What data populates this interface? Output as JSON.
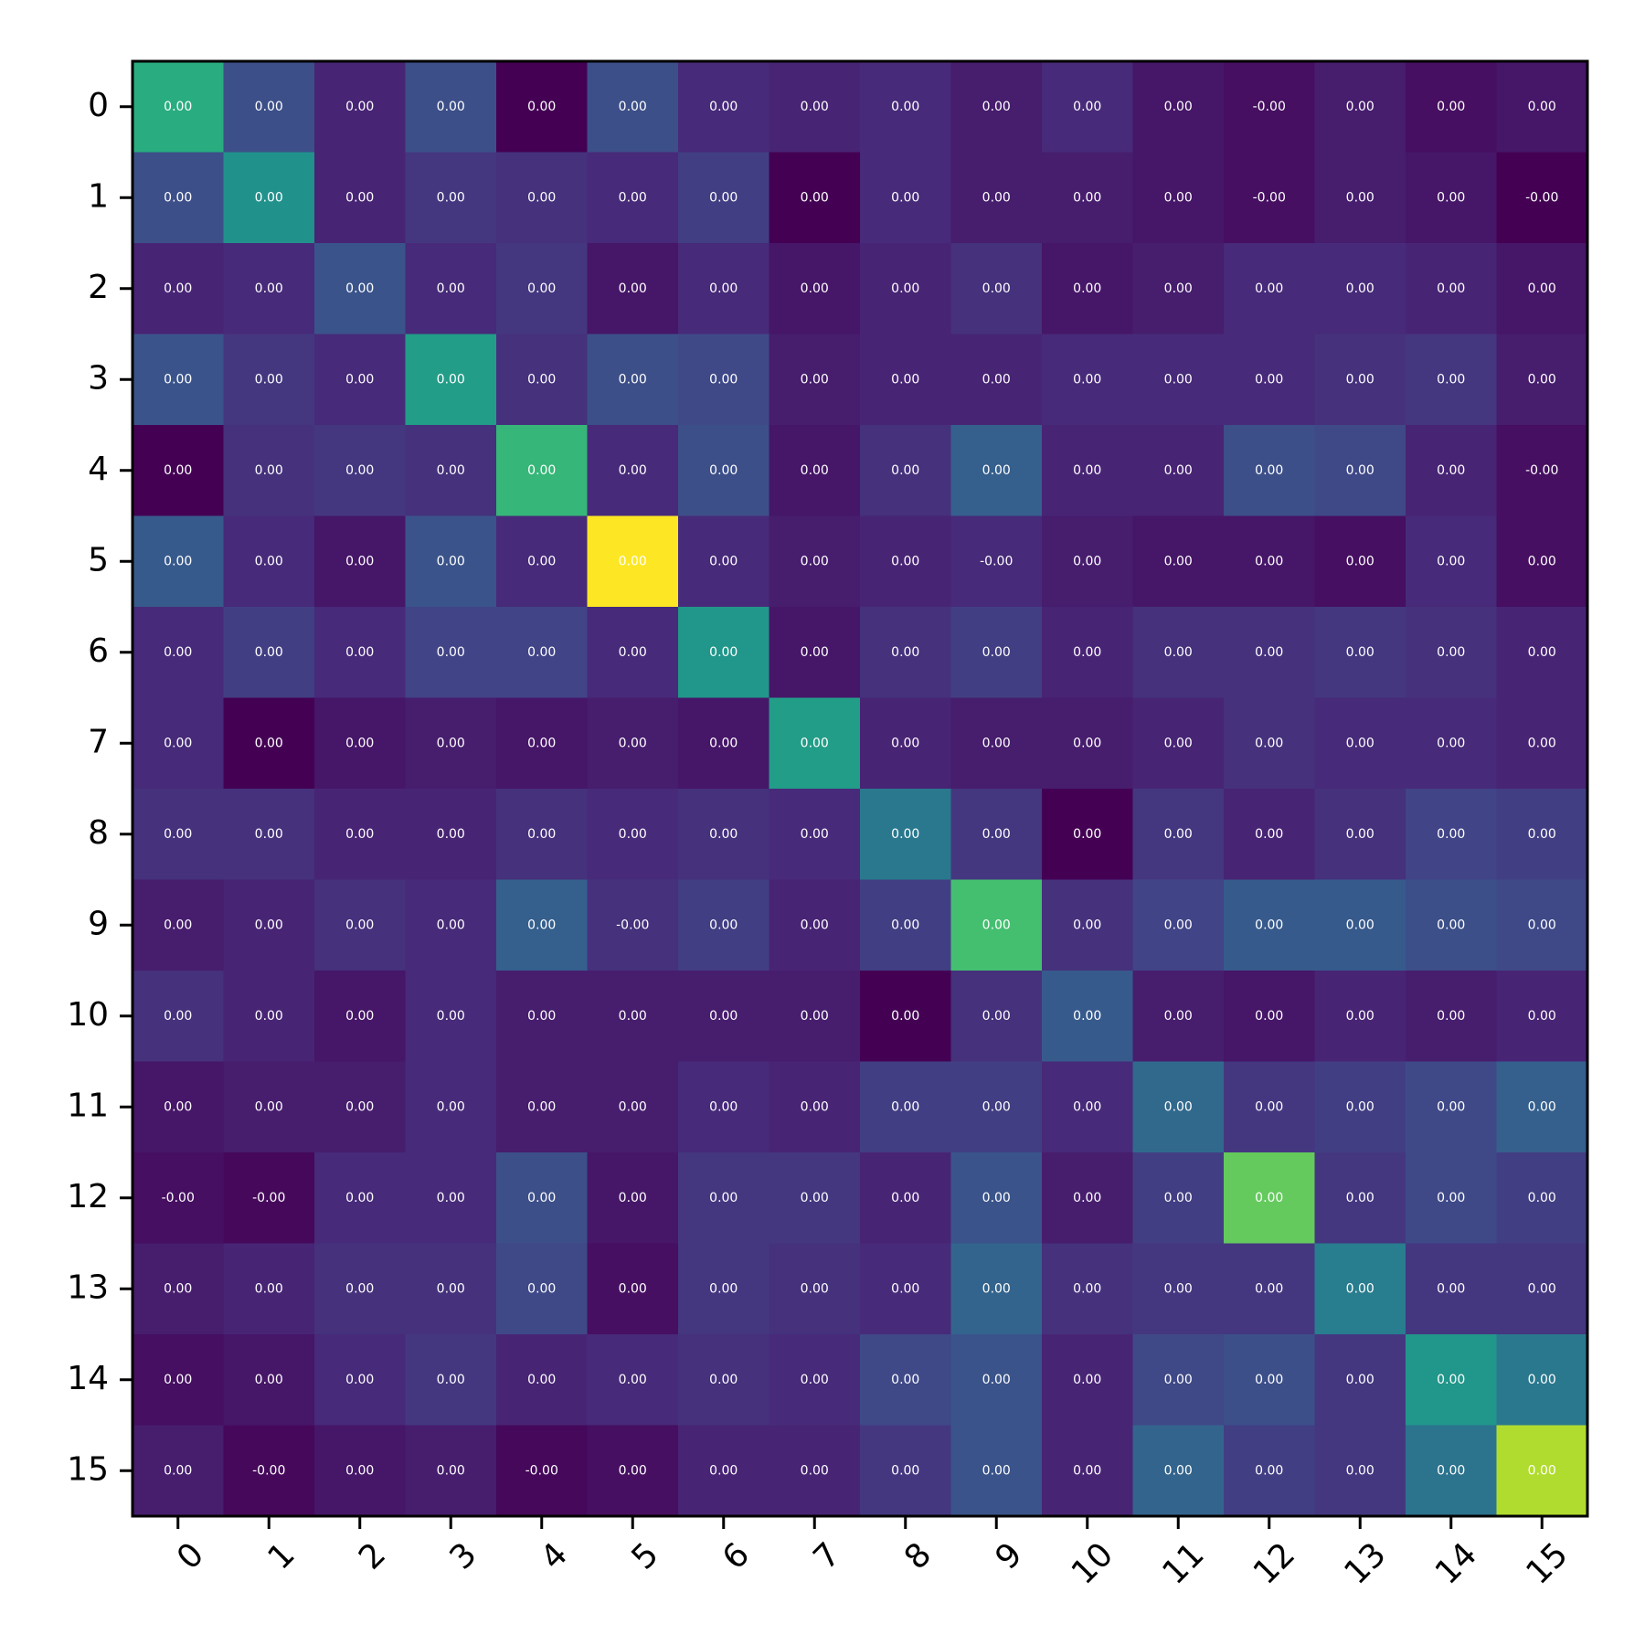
{
  "chart_data": {
    "type": "heatmap",
    "colormap": "viridis",
    "x_tick_rotation_deg": 45,
    "x_categories": [
      "0",
      "1",
      "2",
      "3",
      "4",
      "5",
      "6",
      "7",
      "8",
      "9",
      "10",
      "11",
      "12",
      "13",
      "14",
      "15"
    ],
    "y_categories": [
      "0",
      "1",
      "2",
      "3",
      "4",
      "5",
      "6",
      "7",
      "8",
      "9",
      "10",
      "11",
      "12",
      "13",
      "14",
      "15"
    ],
    "cell_labels": [
      [
        "0.00",
        "0.00",
        "0.00",
        "0.00",
        "0.00",
        "0.00",
        "0.00",
        "0.00",
        "0.00",
        "0.00",
        "0.00",
        "0.00",
        "-0.00",
        "0.00",
        "0.00",
        "0.00"
      ],
      [
        "0.00",
        "0.00",
        "0.00",
        "0.00",
        "0.00",
        "0.00",
        "0.00",
        "0.00",
        "0.00",
        "0.00",
        "0.00",
        "0.00",
        "-0.00",
        "0.00",
        "0.00",
        "-0.00"
      ],
      [
        "0.00",
        "0.00",
        "0.00",
        "0.00",
        "0.00",
        "0.00",
        "0.00",
        "0.00",
        "0.00",
        "0.00",
        "0.00",
        "0.00",
        "0.00",
        "0.00",
        "0.00",
        "0.00"
      ],
      [
        "0.00",
        "0.00",
        "0.00",
        "0.00",
        "0.00",
        "0.00",
        "0.00",
        "0.00",
        "0.00",
        "0.00",
        "0.00",
        "0.00",
        "0.00",
        "0.00",
        "0.00",
        "0.00"
      ],
      [
        "0.00",
        "0.00",
        "0.00",
        "0.00",
        "0.00",
        "0.00",
        "0.00",
        "0.00",
        "0.00",
        "0.00",
        "0.00",
        "0.00",
        "0.00",
        "0.00",
        "0.00",
        "-0.00"
      ],
      [
        "0.00",
        "0.00",
        "0.00",
        "0.00",
        "0.00",
        "0.00",
        "0.00",
        "0.00",
        "0.00",
        "-0.00",
        "0.00",
        "0.00",
        "0.00",
        "0.00",
        "0.00",
        "0.00"
      ],
      [
        "0.00",
        "0.00",
        "0.00",
        "0.00",
        "0.00",
        "0.00",
        "0.00",
        "0.00",
        "0.00",
        "0.00",
        "0.00",
        "0.00",
        "0.00",
        "0.00",
        "0.00",
        "0.00"
      ],
      [
        "0.00",
        "0.00",
        "0.00",
        "0.00",
        "0.00",
        "0.00",
        "0.00",
        "0.00",
        "0.00",
        "0.00",
        "0.00",
        "0.00",
        "0.00",
        "0.00",
        "0.00",
        "0.00"
      ],
      [
        "0.00",
        "0.00",
        "0.00",
        "0.00",
        "0.00",
        "0.00",
        "0.00",
        "0.00",
        "0.00",
        "0.00",
        "0.00",
        "0.00",
        "0.00",
        "0.00",
        "0.00",
        "0.00"
      ],
      [
        "0.00",
        "0.00",
        "0.00",
        "0.00",
        "0.00",
        "-0.00",
        "0.00",
        "0.00",
        "0.00",
        "0.00",
        "0.00",
        "0.00",
        "0.00",
        "0.00",
        "0.00",
        "0.00"
      ],
      [
        "0.00",
        "0.00",
        "0.00",
        "0.00",
        "0.00",
        "0.00",
        "0.00",
        "0.00",
        "0.00",
        "0.00",
        "0.00",
        "0.00",
        "0.00",
        "0.00",
        "0.00",
        "0.00"
      ],
      [
        "0.00",
        "0.00",
        "0.00",
        "0.00",
        "0.00",
        "0.00",
        "0.00",
        "0.00",
        "0.00",
        "0.00",
        "0.00",
        "0.00",
        "0.00",
        "0.00",
        "0.00",
        "0.00"
      ],
      [
        "-0.00",
        "-0.00",
        "0.00",
        "0.00",
        "0.00",
        "0.00",
        "0.00",
        "0.00",
        "0.00",
        "0.00",
        "0.00",
        "0.00",
        "0.00",
        "0.00",
        "0.00",
        "0.00"
      ],
      [
        "0.00",
        "0.00",
        "0.00",
        "0.00",
        "0.00",
        "0.00",
        "0.00",
        "0.00",
        "0.00",
        "0.00",
        "0.00",
        "0.00",
        "0.00",
        "0.00",
        "0.00",
        "0.00"
      ],
      [
        "0.00",
        "0.00",
        "0.00",
        "0.00",
        "0.00",
        "0.00",
        "0.00",
        "0.00",
        "0.00",
        "0.00",
        "0.00",
        "0.00",
        "0.00",
        "0.00",
        "0.00",
        "0.00"
      ],
      [
        "0.00",
        "-0.00",
        "0.00",
        "0.00",
        "-0.00",
        "0.00",
        "0.00",
        "0.00",
        "0.00",
        "0.00",
        "0.00",
        "0.00",
        "0.00",
        "0.00",
        "0.00",
        "0.00"
      ]
    ],
    "color_levels": [
      [
        0.62,
        0.24,
        0.1,
        0.24,
        0.0,
        0.24,
        0.12,
        0.1,
        0.12,
        0.08,
        0.12,
        0.06,
        0.04,
        0.08,
        0.04,
        0.06
      ],
      [
        0.24,
        0.5,
        0.1,
        0.16,
        0.14,
        0.12,
        0.18,
        0.0,
        0.12,
        0.08,
        0.08,
        0.06,
        0.04,
        0.08,
        0.06,
        0.0
      ],
      [
        0.1,
        0.12,
        0.26,
        0.12,
        0.16,
        0.06,
        0.12,
        0.06,
        0.1,
        0.14,
        0.06,
        0.08,
        0.12,
        0.12,
        0.1,
        0.06
      ],
      [
        0.26,
        0.16,
        0.12,
        0.55,
        0.14,
        0.24,
        0.22,
        0.08,
        0.1,
        0.1,
        0.12,
        0.12,
        0.12,
        0.14,
        0.16,
        0.08
      ],
      [
        0.0,
        0.14,
        0.16,
        0.14,
        0.66,
        0.12,
        0.24,
        0.06,
        0.14,
        0.3,
        0.1,
        0.1,
        0.24,
        0.22,
        0.1,
        0.04
      ],
      [
        0.28,
        0.12,
        0.06,
        0.26,
        0.12,
        1.0,
        0.12,
        0.08,
        0.1,
        0.12,
        0.08,
        0.06,
        0.06,
        0.04,
        0.12,
        0.04
      ],
      [
        0.12,
        0.18,
        0.12,
        0.2,
        0.2,
        0.12,
        0.52,
        0.06,
        0.14,
        0.18,
        0.1,
        0.14,
        0.14,
        0.16,
        0.14,
        0.1
      ],
      [
        0.12,
        0.0,
        0.06,
        0.08,
        0.06,
        0.08,
        0.06,
        0.55,
        0.1,
        0.08,
        0.08,
        0.1,
        0.14,
        0.12,
        0.12,
        0.1
      ],
      [
        0.14,
        0.14,
        0.1,
        0.1,
        0.14,
        0.12,
        0.14,
        0.12,
        0.4,
        0.16,
        0.0,
        0.16,
        0.1,
        0.14,
        0.2,
        0.18
      ],
      [
        0.08,
        0.1,
        0.14,
        0.12,
        0.3,
        0.14,
        0.18,
        0.1,
        0.18,
        0.7,
        0.14,
        0.2,
        0.28,
        0.28,
        0.24,
        0.22
      ],
      [
        0.14,
        0.1,
        0.06,
        0.12,
        0.08,
        0.08,
        0.08,
        0.08,
        0.0,
        0.14,
        0.28,
        0.08,
        0.06,
        0.1,
        0.08,
        0.1
      ],
      [
        0.06,
        0.08,
        0.08,
        0.12,
        0.08,
        0.08,
        0.12,
        0.1,
        0.18,
        0.18,
        0.12,
        0.34,
        0.16,
        0.18,
        0.22,
        0.3
      ],
      [
        0.04,
        0.02,
        0.12,
        0.12,
        0.24,
        0.06,
        0.16,
        0.16,
        0.1,
        0.26,
        0.08,
        0.18,
        0.76,
        0.16,
        0.22,
        0.18
      ],
      [
        0.08,
        0.1,
        0.14,
        0.14,
        0.22,
        0.04,
        0.16,
        0.14,
        0.12,
        0.32,
        0.14,
        0.16,
        0.16,
        0.42,
        0.16,
        0.16
      ],
      [
        0.04,
        0.06,
        0.12,
        0.16,
        0.1,
        0.12,
        0.14,
        0.12,
        0.22,
        0.26,
        0.1,
        0.22,
        0.24,
        0.16,
        0.52,
        0.4
      ],
      [
        0.08,
        0.02,
        0.06,
        0.08,
        0.02,
        0.04,
        0.1,
        0.1,
        0.16,
        0.26,
        0.1,
        0.32,
        0.18,
        0.16,
        0.38,
        0.88
      ]
    ]
  }
}
